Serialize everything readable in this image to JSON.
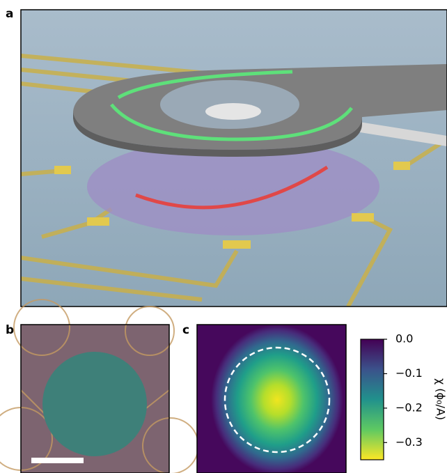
{
  "panels": [
    {
      "label": "a"
    },
    {
      "label": "b"
    },
    {
      "label": "c"
    }
  ],
  "colorbar": {
    "label": "χ (ϕ₀/A)",
    "lim": [
      -0.35,
      0.0
    ],
    "ticks": [
      {
        "value": 0.0,
        "label": "0.0"
      },
      {
        "value": -0.1,
        "label": "−0.1"
      },
      {
        "value": -0.2,
        "label": "−0.2"
      },
      {
        "value": -0.3,
        "label": "−0.3"
      }
    ]
  }
}
